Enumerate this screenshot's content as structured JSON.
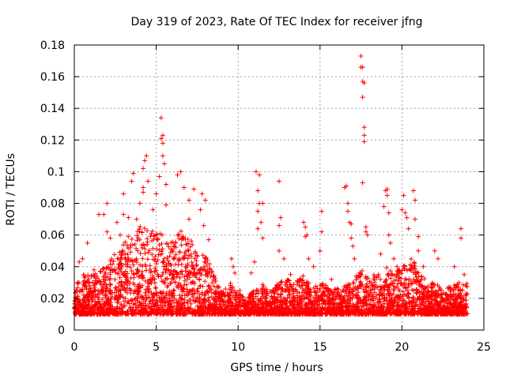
{
  "chart_data": {
    "type": "scatter",
    "title": "Day 319 of 2023, Rate Of TEC Index for receiver jfng",
    "xlabel": "GPS time / hours",
    "ylabel": "ROTI / TECUs",
    "xlim": [
      0,
      25
    ],
    "ylim": [
      0,
      0.18
    ],
    "xticks": [
      0,
      5,
      10,
      15,
      20,
      25
    ],
    "yticks": [
      0,
      0.02,
      0.04,
      0.06,
      0.08,
      0.1,
      0.12,
      0.14,
      0.16,
      0.18
    ],
    "xtick_labels": [
      "0",
      "5",
      "10",
      "15",
      "20",
      "25"
    ],
    "ytick_labels": [
      "0",
      "0.02",
      "0.04",
      "0.06",
      "0.08",
      "0.1",
      "0.12",
      "0.14",
      "0.16",
      "0.18"
    ],
    "grid": true,
    "marker": "+",
    "color": "#ff0000",
    "series": [
      {
        "name": "ROTI",
        "points": [
          [
            0.3,
            0.043
          ],
          [
            0.5,
            0.045
          ],
          [
            0.8,
            0.055
          ],
          [
            1.2,
            0.038
          ],
          [
            1.5,
            0.073
          ],
          [
            1.8,
            0.073
          ],
          [
            2.0,
            0.08
          ],
          [
            2.0,
            0.062
          ],
          [
            2.2,
            0.058
          ],
          [
            2.6,
            0.068
          ],
          [
            2.8,
            0.06
          ],
          [
            3.0,
            0.073
          ],
          [
            3.0,
            0.086
          ],
          [
            3.3,
            0.071
          ],
          [
            3.5,
            0.094
          ],
          [
            3.6,
            0.099
          ],
          [
            3.8,
            0.07
          ],
          [
            4.0,
            0.08
          ],
          [
            4.2,
            0.09
          ],
          [
            4.2,
            0.102
          ],
          [
            4.3,
            0.107
          ],
          [
            4.4,
            0.11
          ],
          [
            4.2,
            0.087
          ],
          [
            4.5,
            0.094
          ],
          [
            4.8,
            0.076
          ],
          [
            5.0,
            0.086
          ],
          [
            5.2,
            0.097
          ],
          [
            5.3,
            0.134
          ],
          [
            5.3,
            0.121
          ],
          [
            5.4,
            0.123
          ],
          [
            5.4,
            0.118
          ],
          [
            5.4,
            0.11
          ],
          [
            5.5,
            0.105
          ],
          [
            5.6,
            0.092
          ],
          [
            5.6,
            0.079
          ],
          [
            6.3,
            0.098
          ],
          [
            6.5,
            0.1
          ],
          [
            6.7,
            0.09
          ],
          [
            7.0,
            0.07
          ],
          [
            7.0,
            0.082
          ],
          [
            7.3,
            0.089
          ],
          [
            7.7,
            0.076
          ],
          [
            7.8,
            0.086
          ],
          [
            7.9,
            0.066
          ],
          [
            8.0,
            0.082
          ],
          [
            8.2,
            0.057
          ],
          [
            9.6,
            0.045
          ],
          [
            9.7,
            0.04
          ],
          [
            9.8,
            0.036
          ],
          [
            10.1,
            0.025
          ],
          [
            10.8,
            0.036
          ],
          [
            11.0,
            0.043
          ],
          [
            11.1,
            0.1
          ],
          [
            11.3,
            0.098
          ],
          [
            11.2,
            0.088
          ],
          [
            11.3,
            0.08
          ],
          [
            11.2,
            0.075
          ],
          [
            11.4,
            0.068
          ],
          [
            11.2,
            0.064
          ],
          [
            11.5,
            0.058
          ],
          [
            11.5,
            0.08
          ],
          [
            12.5,
            0.094
          ],
          [
            12.6,
            0.071
          ],
          [
            12.5,
            0.066
          ],
          [
            12.5,
            0.05
          ],
          [
            12.8,
            0.045
          ],
          [
            13.2,
            0.035
          ],
          [
            14.0,
            0.068
          ],
          [
            14.1,
            0.065
          ],
          [
            14.1,
            0.059
          ],
          [
            14.2,
            0.06
          ],
          [
            14.3,
            0.045
          ],
          [
            14.6,
            0.04
          ],
          [
            15.0,
            0.05
          ],
          [
            15.1,
            0.062
          ],
          [
            15.1,
            0.075
          ],
          [
            15.7,
            0.032
          ],
          [
            16.5,
            0.09
          ],
          [
            16.6,
            0.091
          ],
          [
            16.7,
            0.08
          ],
          [
            16.7,
            0.075
          ],
          [
            16.8,
            0.068
          ],
          [
            16.9,
            0.067
          ],
          [
            16.9,
            0.058
          ],
          [
            17.0,
            0.053
          ],
          [
            17.1,
            0.045
          ],
          [
            17.5,
            0.173
          ],
          [
            17.5,
            0.166
          ],
          [
            17.6,
            0.166
          ],
          [
            17.6,
            0.157
          ],
          [
            17.7,
            0.156
          ],
          [
            17.6,
            0.147
          ],
          [
            17.7,
            0.128
          ],
          [
            17.7,
            0.123
          ],
          [
            17.7,
            0.119
          ],
          [
            17.6,
            0.093
          ],
          [
            17.8,
            0.065
          ],
          [
            17.8,
            0.062
          ],
          [
            17.9,
            0.06
          ],
          [
            18.7,
            0.048
          ],
          [
            18.9,
            0.078
          ],
          [
            19.0,
            0.088
          ],
          [
            19.1,
            0.089
          ],
          [
            19.1,
            0.085
          ],
          [
            19.2,
            0.074
          ],
          [
            19.2,
            0.06
          ],
          [
            19.3,
            0.055
          ],
          [
            19.5,
            0.045
          ],
          [
            19.7,
            0.04
          ],
          [
            20.0,
            0.076
          ],
          [
            20.1,
            0.085
          ],
          [
            20.2,
            0.074
          ],
          [
            20.3,
            0.071
          ],
          [
            20.4,
            0.064
          ],
          [
            20.7,
            0.088
          ],
          [
            20.8,
            0.082
          ],
          [
            20.8,
            0.07
          ],
          [
            21.0,
            0.059
          ],
          [
            21.0,
            0.05
          ],
          [
            21.3,
            0.04
          ],
          [
            22.0,
            0.05
          ],
          [
            22.2,
            0.045
          ],
          [
            23.2,
            0.04
          ],
          [
            23.6,
            0.064
          ],
          [
            23.6,
            0.058
          ],
          [
            23.8,
            0.035
          ],
          [
            23.9,
            0.028
          ]
        ],
        "dense_envelope": [
          [
            0.0,
            0.03
          ],
          [
            0.5,
            0.036
          ],
          [
            1.0,
            0.034
          ],
          [
            1.5,
            0.038
          ],
          [
            2.0,
            0.043
          ],
          [
            2.5,
            0.05
          ],
          [
            3.0,
            0.056
          ],
          [
            3.5,
            0.062
          ],
          [
            4.0,
            0.066
          ],
          [
            4.5,
            0.063
          ],
          [
            5.0,
            0.064
          ],
          [
            5.5,
            0.06
          ],
          [
            6.0,
            0.056
          ],
          [
            6.5,
            0.063
          ],
          [
            7.0,
            0.058
          ],
          [
            7.5,
            0.052
          ],
          [
            8.0,
            0.048
          ],
          [
            8.5,
            0.036
          ],
          [
            9.0,
            0.025
          ],
          [
            9.5,
            0.03
          ],
          [
            10.0,
            0.024
          ],
          [
            10.5,
            0.02
          ],
          [
            11.0,
            0.026
          ],
          [
            11.5,
            0.03
          ],
          [
            12.0,
            0.024
          ],
          [
            12.5,
            0.03
          ],
          [
            13.0,
            0.032
          ],
          [
            13.5,
            0.03
          ],
          [
            14.0,
            0.036
          ],
          [
            14.5,
            0.026
          ],
          [
            15.0,
            0.03
          ],
          [
            15.5,
            0.028
          ],
          [
            16.0,
            0.026
          ],
          [
            16.5,
            0.028
          ],
          [
            17.0,
            0.032
          ],
          [
            17.5,
            0.038
          ],
          [
            18.0,
            0.034
          ],
          [
            18.5,
            0.036
          ],
          [
            19.0,
            0.04
          ],
          [
            19.5,
            0.036
          ],
          [
            20.0,
            0.04
          ],
          [
            20.5,
            0.046
          ],
          [
            21.0,
            0.04
          ],
          [
            21.5,
            0.03
          ],
          [
            22.0,
            0.03
          ],
          [
            22.5,
            0.027
          ],
          [
            23.0,
            0.028
          ],
          [
            23.5,
            0.03
          ],
          [
            24.0,
            0.03
          ]
        ],
        "dense_floor": 0.01
      }
    ]
  }
}
